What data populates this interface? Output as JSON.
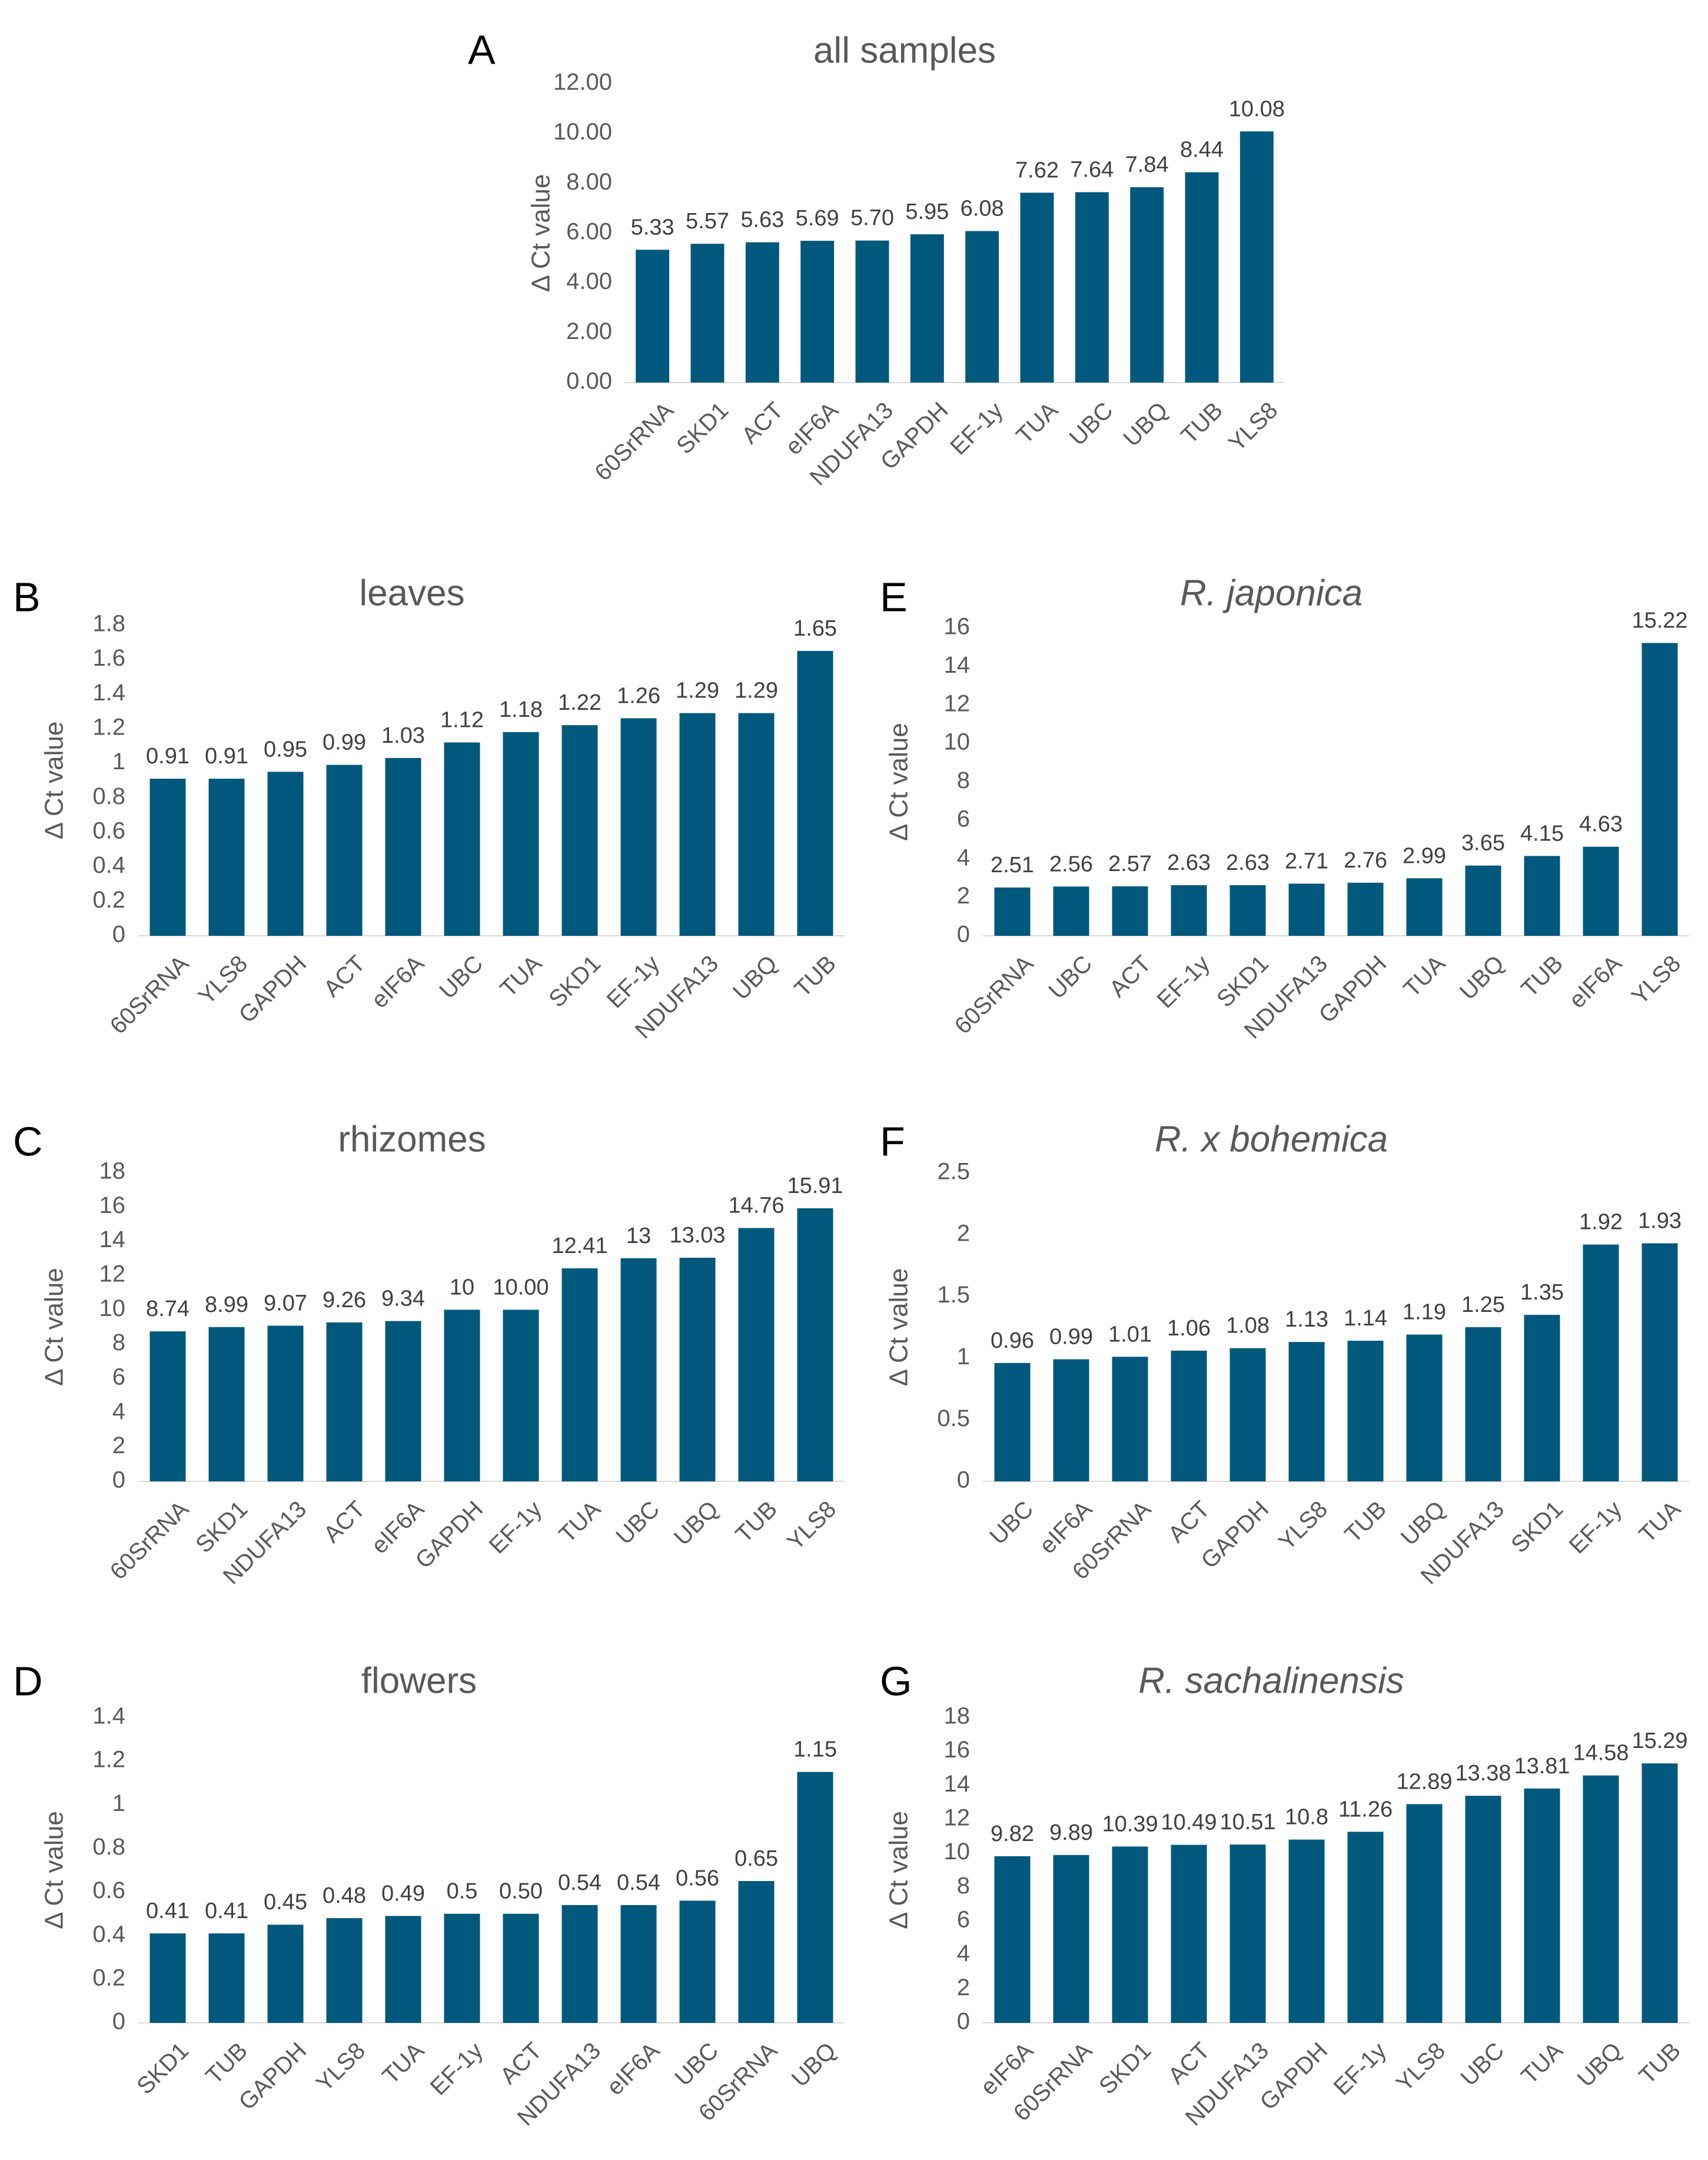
{
  "colors": {
    "bar": "#00587C",
    "text": "#595959",
    "axis": "#D9D9D9"
  },
  "chart_data": [
    {
      "panel": "A",
      "type": "bar",
      "title": "all samples",
      "title_italic": false,
      "ylabel": "Δ Ct value",
      "ylim": [
        0,
        12
      ],
      "yticks": [
        "0.00",
        "2.00",
        "4.00",
        "6.00",
        "8.00",
        "10.00",
        "12.00"
      ],
      "categories": [
        "60SrRNA",
        "SKD1",
        "ACT",
        "eIF6A",
        "NDUFA13",
        "GAPDH",
        "EF-1y",
        "TUA",
        "UBC",
        "UBQ",
        "TUB",
        "YLS8"
      ],
      "values": [
        5.33,
        5.57,
        5.63,
        5.69,
        5.7,
        5.95,
        6.08,
        7.62,
        7.64,
        7.84,
        8.44,
        10.08
      ],
      "labels": [
        "5.33",
        "5.57",
        "5.63",
        "5.69",
        "5.70",
        "5.95",
        "6.08",
        "7.62",
        "7.64",
        "7.84",
        "8.44",
        "10.08"
      ]
    },
    {
      "panel": "B",
      "type": "bar",
      "title": "leaves",
      "title_italic": false,
      "ylabel": "Δ Ct value",
      "ylim": [
        0,
        1.8
      ],
      "yticks": [
        "0",
        "0.2",
        "0.4",
        "0.6",
        "0.8",
        "1",
        "1.2",
        "1.4",
        "1.6",
        "1.8"
      ],
      "categories": [
        "60SrRNA",
        "YLS8",
        "GAPDH",
        "ACT",
        "eIF6A",
        "UBC",
        "TUA",
        "SKD1",
        "EF-1y",
        "NDUFA13",
        "UBQ",
        "TUB"
      ],
      "values": [
        0.91,
        0.91,
        0.95,
        0.99,
        1.03,
        1.12,
        1.18,
        1.22,
        1.26,
        1.29,
        1.29,
        1.65
      ],
      "labels": [
        "0.91",
        "0.91",
        "0.95",
        "0.99",
        "1.03",
        "1.12",
        "1.18",
        "1.22",
        "1.26",
        "1.29",
        "1.29",
        "1.65"
      ]
    },
    {
      "panel": "C",
      "type": "bar",
      "title": "rhizomes",
      "title_italic": false,
      "ylabel": "Δ Ct value",
      "ylim": [
        0,
        18
      ],
      "yticks": [
        "0",
        "2",
        "4",
        "6",
        "8",
        "10",
        "12",
        "14",
        "16",
        "18"
      ],
      "categories": [
        "60SrRNA",
        "SKD1",
        "NDUFA13",
        "ACT",
        "eIF6A",
        "GAPDH",
        "EF-1y",
        "TUA",
        "UBC",
        "UBQ",
        "TUB",
        "YLS8"
      ],
      "values": [
        8.74,
        8.99,
        9.07,
        9.26,
        9.34,
        10,
        10.0,
        12.41,
        13,
        13.03,
        14.76,
        15.91
      ],
      "labels": [
        "8.74",
        "8.99",
        "9.07",
        "9.26",
        "9.34",
        "10",
        "10.00",
        "12.41",
        "13",
        "13.03",
        "14.76",
        "15.91"
      ]
    },
    {
      "panel": "D",
      "type": "bar",
      "title": "flowers",
      "title_italic": false,
      "ylabel": "Δ Ct value",
      "ylim": [
        0,
        1.4
      ],
      "yticks": [
        "0",
        "0.2",
        "0.4",
        "0.6",
        "0.8",
        "1",
        "1.2",
        "1.4"
      ],
      "categories": [
        "SKD1",
        "TUB",
        "GAPDH",
        "YLS8",
        "TUA",
        "EF-1y",
        "ACT",
        "NDUFA13",
        "eIF6A",
        "UBC",
        "60SrRNA",
        "UBQ"
      ],
      "values": [
        0.41,
        0.41,
        0.45,
        0.48,
        0.49,
        0.5,
        0.5,
        0.54,
        0.54,
        0.56,
        0.65,
        1.15
      ],
      "labels": [
        "0.41",
        "0.41",
        "0.45",
        "0.48",
        "0.49",
        "0.5",
        "0.50",
        "0.54",
        "0.54",
        "0.56",
        "0.65",
        "1.15"
      ]
    },
    {
      "panel": "E",
      "type": "bar",
      "title": "R. japonica",
      "title_italic": true,
      "ylabel": "Δ Ct value",
      "ylim": [
        0,
        16
      ],
      "yticks": [
        "0",
        "2",
        "4",
        "6",
        "8",
        "10",
        "12",
        "14",
        "16"
      ],
      "categories": [
        "60SrRNA",
        "UBC",
        "ACT",
        "EF-1y",
        "SKD1",
        "NDUFA13",
        "GAPDH",
        "TUA",
        "UBQ",
        "TUB",
        "eIF6A",
        "YLS8"
      ],
      "values": [
        2.51,
        2.56,
        2.57,
        2.63,
        2.63,
        2.71,
        2.76,
        2.99,
        3.65,
        4.15,
        4.63,
        15.22
      ],
      "labels": [
        "2.51",
        "2.56",
        "2.57",
        "2.63",
        "2.63",
        "2.71",
        "2.76",
        "2.99",
        "3.65",
        "4.15",
        "4.63",
        "15.22"
      ]
    },
    {
      "panel": "F",
      "type": "bar",
      "title": "R. x bohemica",
      "title_italic": true,
      "ylabel": "Δ Ct value",
      "ylim": [
        0,
        2.5
      ],
      "yticks": [
        "0",
        "0.5",
        "1",
        "1.5",
        "2",
        "2.5"
      ],
      "categories": [
        "UBC",
        "eIF6A",
        "60SrRNA",
        "ACT",
        "GAPDH",
        "YLS8",
        "TUB",
        "UBQ",
        "NDUFA13",
        "SKD1",
        "EF-1y",
        "TUA"
      ],
      "values": [
        0.96,
        0.99,
        1.01,
        1.06,
        1.08,
        1.13,
        1.14,
        1.19,
        1.25,
        1.35,
        1.92,
        1.93
      ],
      "labels": [
        "0.96",
        "0.99",
        "1.01",
        "1.06",
        "1.08",
        "1.13",
        "1.14",
        "1.19",
        "1.25",
        "1.35",
        "1.92",
        "1.93"
      ]
    },
    {
      "panel": "G",
      "type": "bar",
      "title": "R. sachalinensis",
      "title_italic": true,
      "ylabel": "Δ Ct value",
      "ylim": [
        0,
        18
      ],
      "yticks": [
        "0",
        "2",
        "4",
        "6",
        "8",
        "10",
        "12",
        "14",
        "16",
        "18"
      ],
      "categories": [
        "eIF6A",
        "60SrRNA",
        "SKD1",
        "ACT",
        "NDUFA13",
        "GAPDH",
        "EF-1y",
        "YLS8",
        "UBC",
        "TUA",
        "UBQ",
        "TUB"
      ],
      "values": [
        9.82,
        9.89,
        10.39,
        10.49,
        10.51,
        10.8,
        11.26,
        12.89,
        13.38,
        13.81,
        14.58,
        15.29
      ],
      "labels": [
        "9.82",
        "9.89",
        "10.39",
        "10.49",
        "10.51",
        "10.8",
        "11.26",
        "12.89",
        "13.38",
        "13.81",
        "14.58",
        "15.29"
      ]
    }
  ]
}
